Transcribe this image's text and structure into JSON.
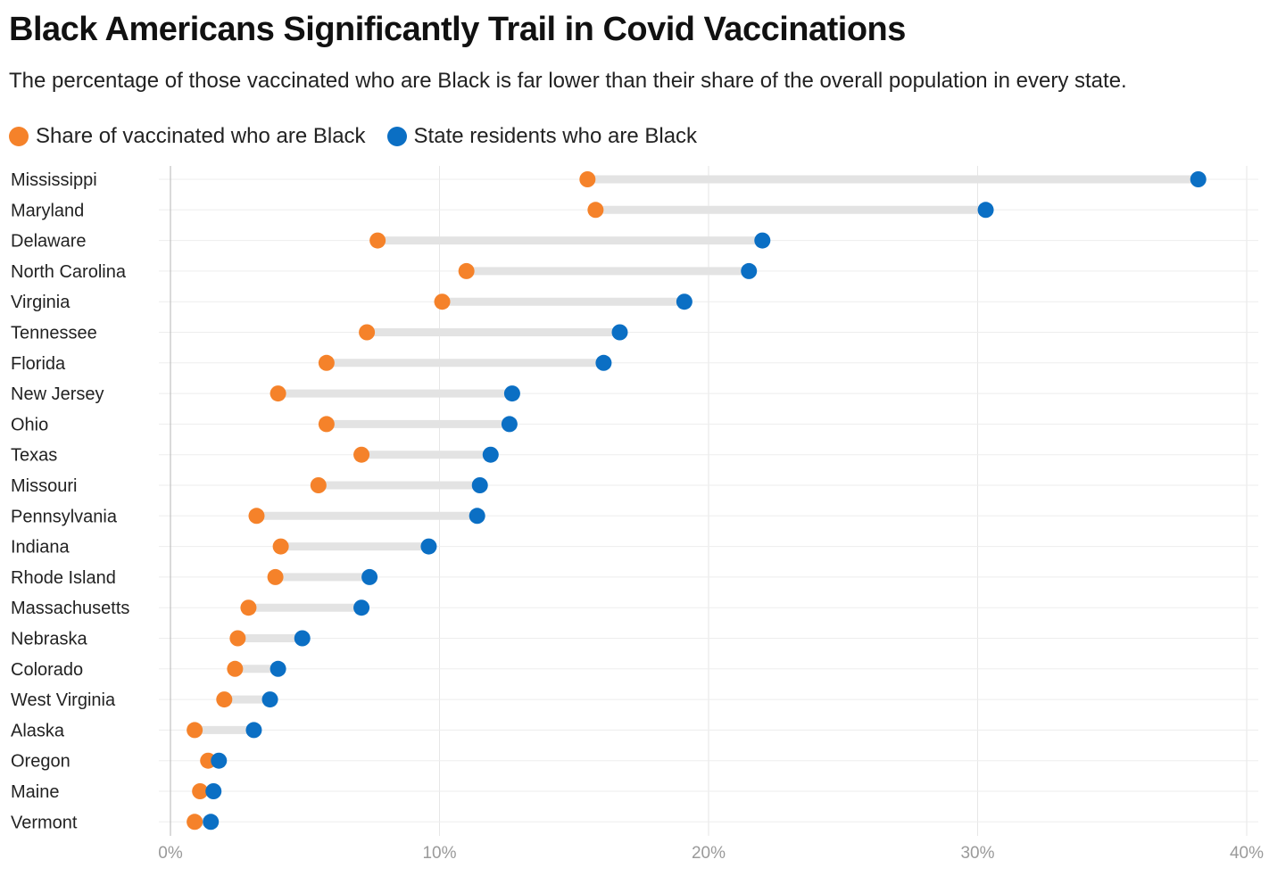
{
  "header": {
    "title": "Black Americans Significantly Trail in Covid Vaccinations",
    "subtitle": "The percentage of those vaccinated who are Black is far lower than their share of the overall population in every state."
  },
  "legend": {
    "items": [
      {
        "label": "Share of vaccinated who are Black",
        "color": "#f5822a"
      },
      {
        "label": "State residents who are Black",
        "color": "#0b6fc4"
      }
    ]
  },
  "colors": {
    "vaccinated": "#f5822a",
    "residents": "#0b6fc4",
    "connector": "#e3e3e3",
    "grid": "#e6e6e6",
    "axis": "#9a9a9a"
  },
  "chart_data": {
    "type": "dumbbell",
    "title": "Black Americans Significantly Trail in Covid Vaccinations",
    "xlim": [
      0,
      40
    ],
    "xticks": [
      0,
      10,
      20,
      30,
      40
    ],
    "xtick_labels": [
      "0%",
      "10%",
      "20%",
      "30%",
      "40%"
    ],
    "grid": true,
    "legend_position": "top-left",
    "categories": [
      "Mississippi",
      "Maryland",
      "Delaware",
      "North Carolina",
      "Virginia",
      "Tennessee",
      "Florida",
      "New Jersey",
      "Ohio",
      "Texas",
      "Missouri",
      "Pennsylvania",
      "Indiana",
      "Rhode Island",
      "Massachusetts",
      "Nebraska",
      "Colorado",
      "West Virginia",
      "Alaska",
      "Oregon",
      "Maine",
      "Vermont"
    ],
    "series": [
      {
        "name": "Share of vaccinated who are Black",
        "values": [
          15.5,
          15.8,
          7.7,
          11.0,
          10.1,
          7.3,
          5.8,
          4.0,
          5.8,
          7.1,
          5.5,
          3.2,
          4.1,
          3.9,
          2.9,
          2.5,
          2.4,
          2.0,
          0.9,
          1.4,
          1.1,
          0.9
        ]
      },
      {
        "name": "State residents who are Black",
        "values": [
          38.2,
          30.3,
          22.0,
          21.5,
          19.1,
          16.7,
          16.1,
          12.7,
          12.6,
          11.9,
          11.5,
          11.4,
          9.6,
          7.4,
          7.1,
          4.9,
          4.0,
          3.7,
          3.1,
          1.8,
          1.6,
          1.5
        ]
      }
    ]
  }
}
